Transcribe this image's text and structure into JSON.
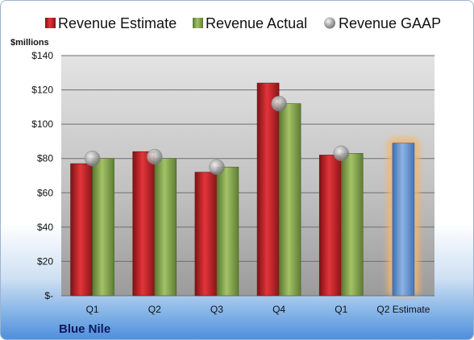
{
  "chart_data": {
    "type": "bar",
    "categories": [
      "Q1",
      "Q2",
      "Q3",
      "Q4",
      "Q1",
      "Q2 Estimate"
    ],
    "series": [
      {
        "name": "Revenue Estimate",
        "type": "bar",
        "values": [
          77,
          84,
          72,
          124,
          82,
          89
        ],
        "color": "#c0262b"
      },
      {
        "name": "Revenue Actual",
        "type": "bar",
        "values": [
          80,
          80,
          75,
          112,
          83,
          null
        ],
        "color": "#8aab52"
      },
      {
        "name": "Revenue GAAP",
        "type": "marker",
        "values": [
          80,
          81,
          75,
          112,
          83,
          null
        ],
        "color": "#a6a6a6"
      }
    ],
    "highlight": {
      "category_index": 5,
      "bar_color": "#6d97d2",
      "glow_color": "#f4b56a"
    },
    "ylabel": "$millions",
    "ylim": [
      0,
      140
    ],
    "yticks": [
      0,
      20,
      40,
      60,
      80,
      100,
      120,
      140
    ],
    "ytick_labels": [
      "$-",
      "$20",
      "$40",
      "$60",
      "$80",
      "$100",
      "$120",
      "$140"
    ],
    "grid": true,
    "legend_position": "top",
    "company": "Blue Nile"
  }
}
